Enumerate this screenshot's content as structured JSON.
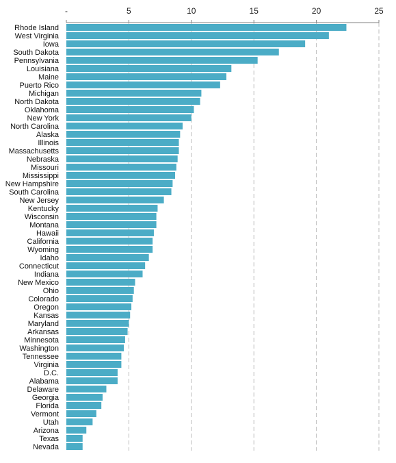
{
  "chart_data": {
    "type": "bar",
    "orientation": "horizontal",
    "title": "",
    "xlabel": "",
    "ylabel": "",
    "xlim": [
      0,
      25
    ],
    "x_ticks": [
      {
        "value": 0,
        "label": "-"
      },
      {
        "value": 5,
        "label": "5"
      },
      {
        "value": 10,
        "label": "10"
      },
      {
        "value": 15,
        "label": "15"
      },
      {
        "value": 20,
        "label": "20"
      },
      {
        "value": 25,
        "label": "25"
      }
    ],
    "grid": "vertical dashed",
    "bar_color": "#4bacc6",
    "categories": [
      "Rhode Island",
      "West Virginia",
      "Iowa",
      "South Dakota",
      "Pennsylvania",
      "Louisiana",
      "Maine",
      "Puerto Rico",
      "Michigan",
      "North Dakota",
      "Oklahoma",
      "New York",
      "North Carolina",
      "Alaska",
      "Illinois",
      "Massachusetts",
      "Nebraska",
      "Missouri",
      "Mississippi",
      "New Hampshire",
      "South Carolina",
      "New Jersey",
      "Kentucky",
      "Wisconsin",
      "Montana",
      "Hawaii",
      "California",
      "Wyoming",
      "Idaho",
      "Connecticut",
      "Indiana",
      "New Mexico",
      "Ohio",
      "Colorado",
      "Oregon",
      "Kansas",
      "Maryland",
      "Arkansas",
      "Minnesota",
      "Washington",
      "Tennessee",
      "Virginia",
      "D.C.",
      "Alabama",
      "Delaware",
      "Georgia",
      "Florida",
      "Vermont",
      "Utah",
      "Arizona",
      "Texas",
      "Nevada"
    ],
    "values": [
      22.4,
      21.0,
      19.1,
      17.0,
      15.3,
      13.2,
      12.8,
      12.3,
      10.8,
      10.7,
      10.2,
      10.0,
      9.3,
      9.1,
      9.0,
      9.0,
      8.9,
      8.8,
      8.7,
      8.5,
      8.4,
      7.8,
      7.3,
      7.2,
      7.2,
      7.0,
      6.9,
      6.9,
      6.6,
      6.3,
      6.1,
      5.5,
      5.4,
      5.3,
      5.2,
      5.1,
      5.0,
      4.9,
      4.7,
      4.6,
      4.4,
      4.4,
      4.1,
      4.1,
      3.2,
      2.9,
      2.8,
      2.4,
      2.1,
      1.6,
      1.3,
      1.3
    ]
  }
}
